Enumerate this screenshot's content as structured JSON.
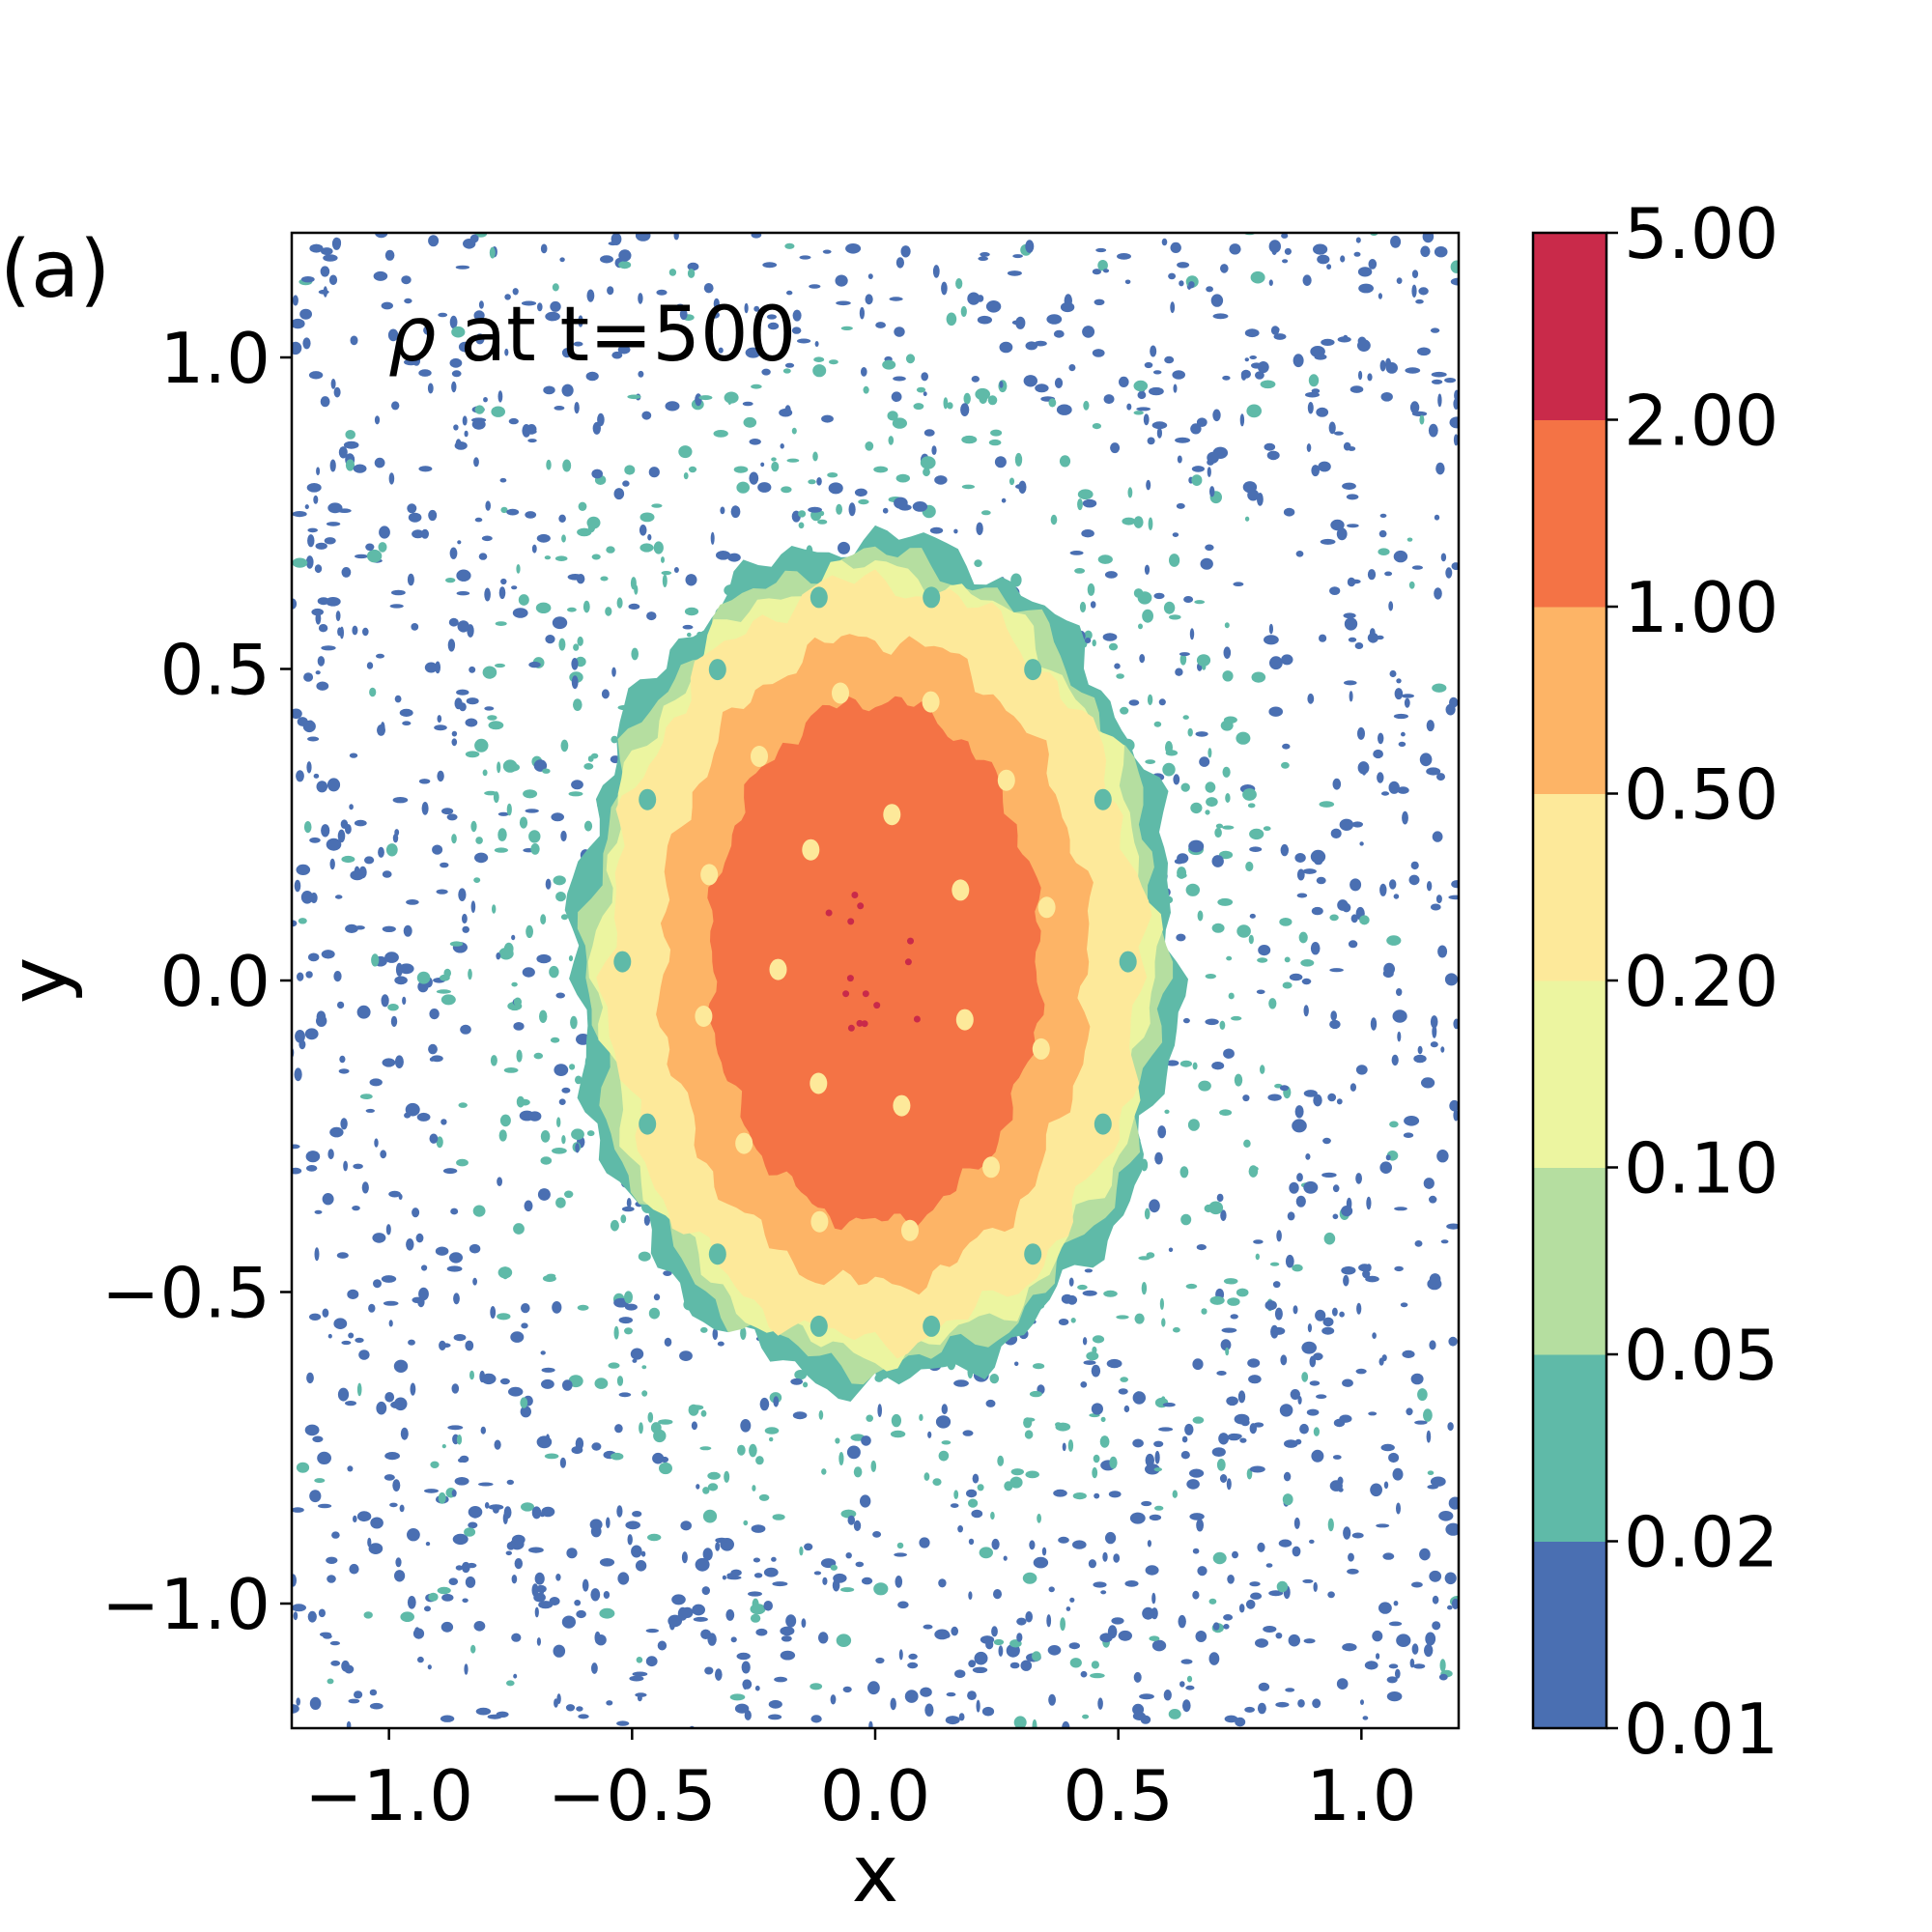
{
  "chart_data": {
    "type": "heatmap",
    "panel_label": "(a)",
    "title": "ρ at t=500",
    "title_symbol": "ρ",
    "title_rest": " at t=500",
    "xlabel": "x",
    "ylabel": "y",
    "xlim": [
      -1.2,
      1.2
    ],
    "ylim": [
      -1.2,
      1.2
    ],
    "x_ticks": [
      -1.0,
      -0.5,
      0.0,
      0.5,
      1.0
    ],
    "x_tick_labels": [
      "−1.0",
      "−0.5",
      "0.0",
      "0.5",
      "1.0"
    ],
    "y_ticks": [
      -1.0,
      -0.5,
      0.0,
      0.5,
      1.0
    ],
    "y_tick_labels": [
      "−1.0",
      "−0.5",
      "0.0",
      "0.5",
      "1.0"
    ],
    "colorbar": {
      "levels": [
        0.01,
        0.02,
        0.05,
        0.1,
        0.2,
        0.5,
        1.0,
        2.0,
        5.0
      ],
      "labels": [
        "0.01",
        "0.02",
        "0.05",
        "0.10",
        "0.20",
        "0.50",
        "1.00",
        "2.00",
        "5.00"
      ],
      "colors": [
        "#4a6fb2",
        "#5fbaa8",
        "#b5dea0",
        "#ecf5a0",
        "#fde99a",
        "#fdb466",
        "#f47345",
        "#c92a4a"
      ]
    },
    "blob": {
      "center": [
        0.0,
        0.03
      ],
      "contours": [
        {
          "level": 0.02,
          "rx": 0.62,
          "ry": 0.68,
          "color": "#5fbaa8"
        },
        {
          "level": 0.05,
          "rx": 0.59,
          "ry": 0.65,
          "color": "#b5dea0"
        },
        {
          "level": 0.1,
          "rx": 0.57,
          "ry": 0.63,
          "color": "#ecf5a0"
        },
        {
          "level": 0.2,
          "rx": 0.55,
          "ry": 0.61,
          "color": "#fde99a"
        },
        {
          "level": 0.5,
          "rx": 0.44,
          "ry": 0.52,
          "color": "#fdb466"
        },
        {
          "level": 1.0,
          "rx": 0.34,
          "ry": 0.42,
          "color": "#f47345"
        }
      ]
    }
  }
}
